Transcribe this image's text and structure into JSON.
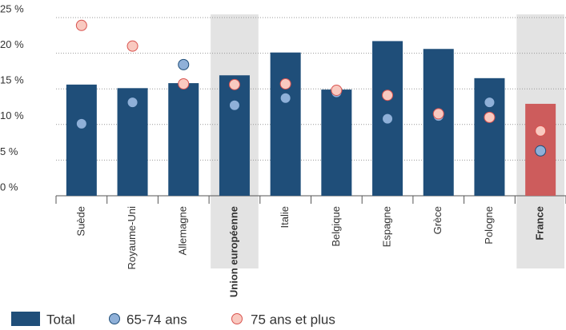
{
  "chart_data": {
    "type": "bar",
    "categories": [
      "Suède",
      "Royaume-Uni",
      "Allemagne",
      "Union européenne",
      "Italie",
      "Belgique",
      "Espagne",
      "Grèce",
      "Pologne",
      "France"
    ],
    "emphasized": [
      3,
      9
    ],
    "series": [
      {
        "name": "Total",
        "type": "bar",
        "color": "#1f4e79",
        "colors": [
          "#1f4e79",
          "#1f4e79",
          "#1f4e79",
          "#1f4e79",
          "#1f4e79",
          "#1f4e79",
          "#1f4e79",
          "#1f4e79",
          "#1f4e79",
          "#cd5c5c"
        ],
        "values": [
          15.6,
          15.1,
          15.8,
          16.9,
          20.1,
          14.9,
          21.7,
          20.6,
          16.5,
          12.9
        ]
      },
      {
        "name": "65-74 ans",
        "type": "dot",
        "color": "#8fb0d8",
        "stroke": "#1f4e79",
        "values": [
          10.1,
          13.1,
          18.4,
          12.7,
          13.7,
          14.5,
          10.8,
          11.2,
          13.1,
          6.3
        ]
      },
      {
        "name": "75 ans et plus",
        "type": "dot",
        "color": "#f9c9c0",
        "stroke": "#d9534f",
        "values": [
          23.9,
          21.0,
          15.7,
          15.6,
          15.7,
          14.8,
          14.1,
          11.5,
          11.0,
          9.1
        ]
      }
    ],
    "ylim": [
      0,
      25
    ],
    "yticks": [
      {
        "value": 0,
        "label": "0 %"
      },
      {
        "value": 5,
        "label": "5 %"
      },
      {
        "value": 10,
        "label": "10 %"
      },
      {
        "value": 15,
        "label": "15 %"
      },
      {
        "value": 20,
        "label": "20 %"
      },
      {
        "value": 25,
        "label": "25 %"
      }
    ],
    "grid": true
  }
}
